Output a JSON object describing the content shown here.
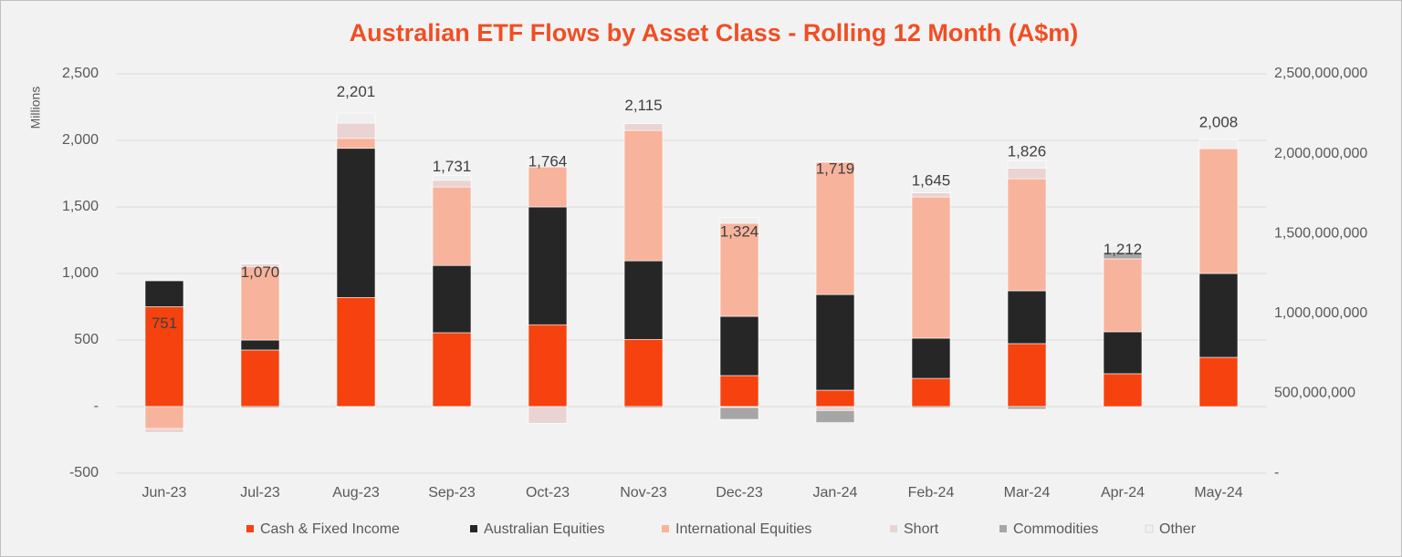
{
  "chart_data": {
    "type": "stacked-bar",
    "title": "Australian ETF Flows by Asset Class - Rolling 12 Month (A$m)",
    "y_label": "Millions",
    "categories": [
      "Jun-23",
      "Jul-23",
      "Aug-23",
      "Sep-23",
      "Oct-23",
      "Nov-23",
      "Dec-23",
      "Jan-24",
      "Feb-24",
      "Mar-24",
      "Apr-24",
      "May-24"
    ],
    "series": [
      {
        "name": "Cash & Fixed Income",
        "color": "#f5420e",
        "values": [
          750,
          425,
          820,
          555,
          615,
          505,
          233,
          123,
          212,
          473,
          247,
          370
        ]
      },
      {
        "name": "Australian Equities",
        "color": "#262626",
        "values": [
          195,
          75,
          1120,
          505,
          885,
          590,
          445,
          719,
          302,
          397,
          315,
          630
        ]
      },
      {
        "name": "International Equities",
        "color": "#f8b39c",
        "values": [
          -165,
          550,
          75,
          590,
          300,
          980,
          699,
          994,
          1061,
          842,
          548,
          938
        ]
      },
      {
        "name": "Short",
        "color": "#ead3d3",
        "values": [
          -30,
          20,
          115,
          50,
          -125,
          50,
          -7,
          -30,
          30,
          80,
          0,
          0
        ]
      },
      {
        "name": "Commodities",
        "color": "#a6a6a6",
        "values": [
          0,
          -10,
          -4,
          -5,
          0,
          -10,
          -89,
          -90,
          -10,
          -20,
          50,
          0
        ]
      },
      {
        "name": "Other",
        "color": "#efefef",
        "values": [
          0,
          10,
          75,
          36,
          89,
          0,
          43,
          3,
          50,
          54,
          52,
          70
        ]
      }
    ],
    "totals": {
      "axis": "y2",
      "values": [
        751000000,
        1070000000,
        2201000000,
        1731000000,
        1764000000,
        2115000000,
        1324000000,
        1719000000,
        1645000000,
        1826000000,
        1212000000,
        2008000000
      ],
      "value_labels": [
        "751",
        "1,070",
        "2,201",
        "1,731",
        "1,764",
        "2,115",
        "1,324",
        "1,719",
        "1,645",
        "1,826",
        "1,212",
        "2,008"
      ]
    },
    "ylim": [
      -500,
      2500
    ],
    "yticks": [
      {
        "value": -500,
        "label": "-500"
      },
      {
        "value": 0,
        "label": "-"
      },
      500,
      {
        "value": 1000,
        "label": "1,000"
      },
      {
        "value": 1500,
        "label": "1,500"
      },
      {
        "value": 2000,
        "label": "2,000"
      },
      {
        "value": 2500,
        "label": "2,500"
      }
    ],
    "y2lim": [
      0,
      2500000000
    ],
    "y2ticks": [
      {
        "value": 0,
        "label": "-"
      },
      {
        "value": 500000000,
        "label": "500,000,000"
      },
      {
        "value": 1000000000,
        "label": "1,000,000,000"
      },
      {
        "value": 1500000000,
        "label": "1,500,000,000"
      },
      {
        "value": 2000000000,
        "label": "2,000,000,000"
      },
      {
        "value": 2500000000,
        "label": "2,500,000,000"
      }
    ],
    "grid": true,
    "legend": "bottom"
  }
}
